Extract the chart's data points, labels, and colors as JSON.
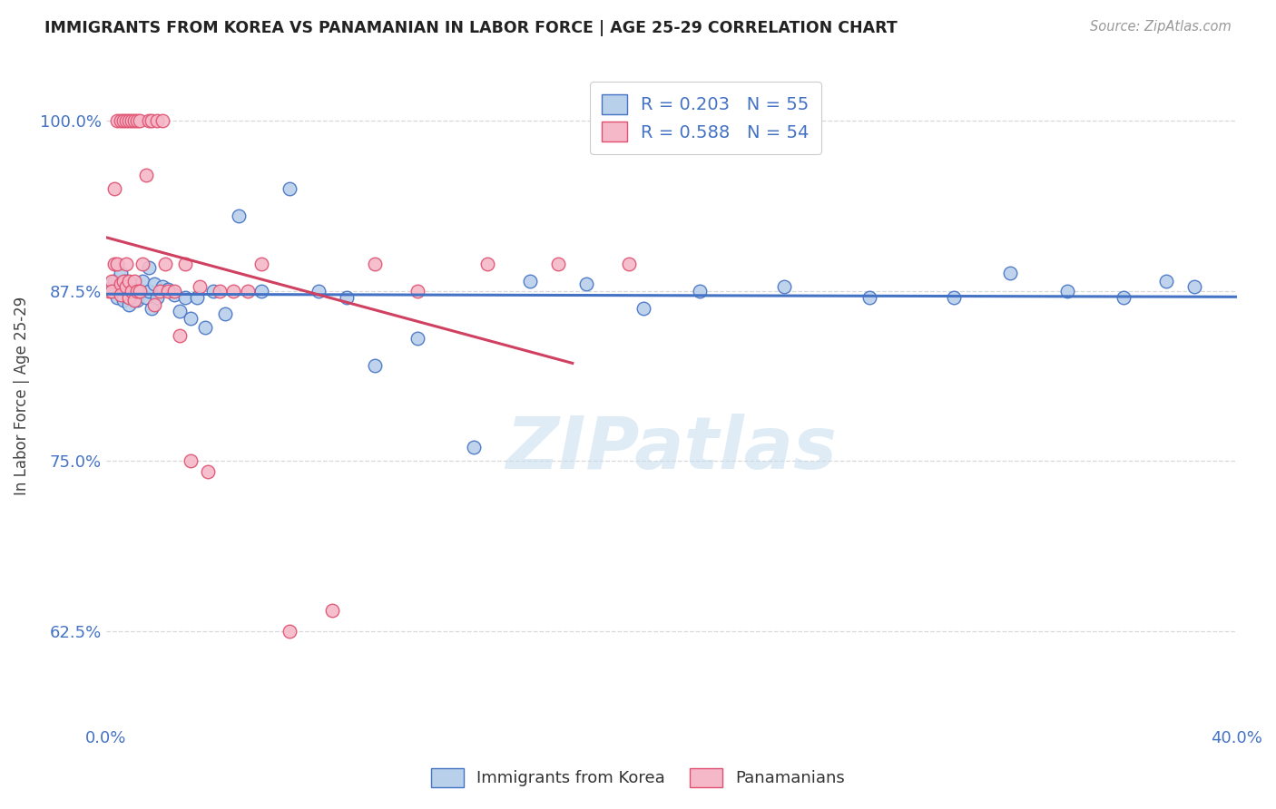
{
  "title": "IMMIGRANTS FROM KOREA VS PANAMANIAN IN LABOR FORCE | AGE 25-29 CORRELATION CHART",
  "source": "Source: ZipAtlas.com",
  "ylabel": "In Labor Force | Age 25-29",
  "yticks": [
    "62.5%",
    "75.0%",
    "87.5%",
    "100.0%"
  ],
  "ytick_vals": [
    0.625,
    0.75,
    0.875,
    1.0
  ],
  "xlim": [
    0.0,
    0.4
  ],
  "ylim": [
    0.555,
    1.04
  ],
  "legend_korea": "R = 0.203   N = 55",
  "legend_panama": "R = 0.588   N = 54",
  "korea_color": "#b8d0ea",
  "panama_color": "#f5b8c8",
  "korea_edge_color": "#4472c4",
  "panama_edge_color": "#e05070",
  "korea_line_color": "#4472c4",
  "panama_line_color": "#d04060",
  "title_color": "#222222",
  "axis_label_color": "#4472c4",
  "watermark": "ZIPatlas",
  "background_color": "#ffffff",
  "grid_color": "#d8d8d8",
  "korea_x": [
    0.003,
    0.003,
    0.004,
    0.005,
    0.005,
    0.006,
    0.006,
    0.007,
    0.007,
    0.008,
    0.008,
    0.009,
    0.009,
    0.01,
    0.01,
    0.011,
    0.011,
    0.012,
    0.013,
    0.014,
    0.015,
    0.015,
    0.016,
    0.017,
    0.018,
    0.02,
    0.022,
    0.024,
    0.026,
    0.028,
    0.03,
    0.032,
    0.035,
    0.038,
    0.042,
    0.047,
    0.055,
    0.065,
    0.075,
    0.085,
    0.095,
    0.11,
    0.13,
    0.15,
    0.17,
    0.19,
    0.21,
    0.24,
    0.27,
    0.3,
    0.32,
    0.34,
    0.36,
    0.375,
    0.385
  ],
  "korea_y": [
    0.875,
    0.882,
    0.87,
    0.888,
    0.878,
    0.872,
    0.868,
    0.882,
    0.875,
    0.87,
    0.865,
    0.88,
    0.872,
    0.878,
    0.87,
    0.875,
    0.868,
    0.875,
    0.882,
    0.87,
    0.875,
    0.892,
    0.862,
    0.88,
    0.87,
    0.878,
    0.876,
    0.872,
    0.86,
    0.87,
    0.855,
    0.87,
    0.848,
    0.875,
    0.858,
    0.93,
    0.875,
    0.95,
    0.875,
    0.87,
    0.82,
    0.84,
    0.76,
    0.882,
    0.88,
    0.862,
    0.875,
    0.878,
    0.87,
    0.87,
    0.888,
    0.875,
    0.87,
    0.882,
    0.878
  ],
  "panama_x": [
    0.001,
    0.002,
    0.002,
    0.003,
    0.003,
    0.004,
    0.004,
    0.005,
    0.005,
    0.005,
    0.006,
    0.006,
    0.007,
    0.007,
    0.007,
    0.008,
    0.008,
    0.008,
    0.009,
    0.009,
    0.01,
    0.01,
    0.01,
    0.011,
    0.011,
    0.012,
    0.012,
    0.013,
    0.014,
    0.015,
    0.016,
    0.017,
    0.018,
    0.019,
    0.02,
    0.021,
    0.022,
    0.024,
    0.026,
    0.028,
    0.03,
    0.033,
    0.036,
    0.04,
    0.045,
    0.05,
    0.055,
    0.065,
    0.08,
    0.095,
    0.11,
    0.135,
    0.16,
    0.185
  ],
  "panama_y": [
    0.875,
    0.882,
    0.875,
    0.95,
    0.895,
    1.0,
    0.895,
    1.0,
    0.88,
    0.872,
    1.0,
    0.882,
    1.0,
    0.895,
    0.878,
    1.0,
    0.882,
    0.87,
    1.0,
    0.875,
    1.0,
    0.882,
    0.868,
    1.0,
    0.875,
    1.0,
    0.875,
    0.895,
    0.96,
    1.0,
    1.0,
    0.865,
    1.0,
    0.875,
    1.0,
    0.895,
    0.875,
    0.875,
    0.842,
    0.895,
    0.75,
    0.878,
    0.742,
    0.875,
    0.875,
    0.875,
    0.895,
    0.625,
    0.64,
    0.895,
    0.875,
    0.895,
    0.895,
    0.895
  ]
}
